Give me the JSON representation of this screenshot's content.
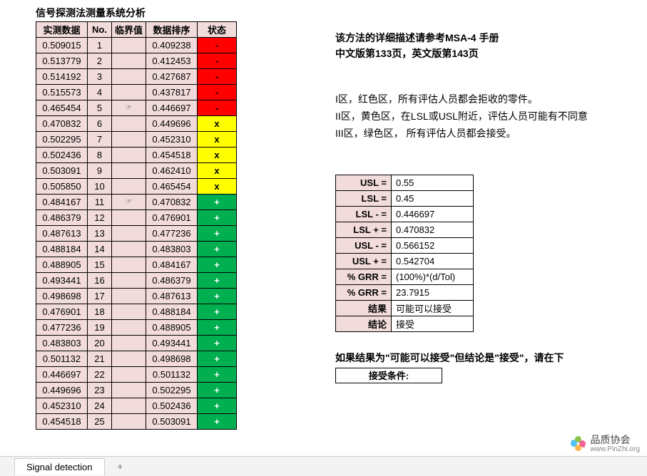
{
  "title": "信号探测法测量系统分析",
  "headers": {
    "data": "实测数据",
    "no": "No.",
    "thresh": "临界值",
    "sorted": "数据排序",
    "status": "状态"
  },
  "rows": [
    {
      "data": "0.509015",
      "no": "1",
      "thresh": "",
      "sorted": "0.409238",
      "status": "-",
      "sclass": "red"
    },
    {
      "data": "0.513779",
      "no": "2",
      "thresh": "",
      "sorted": "0.412453",
      "status": "-",
      "sclass": "red"
    },
    {
      "data": "0.514192",
      "no": "3",
      "thresh": "",
      "sorted": "0.427687",
      "status": "-",
      "sclass": "red"
    },
    {
      "data": "0.515573",
      "no": "4",
      "thresh": "",
      "sorted": "0.437817",
      "status": "-",
      "sclass": "red"
    },
    {
      "data": "0.465454",
      "no": "5",
      "thresh": "☞",
      "sorted": "0.446697",
      "status": "-",
      "sclass": "red"
    },
    {
      "data": "0.470832",
      "no": "6",
      "thresh": "",
      "sorted": "0.449696",
      "status": "x",
      "sclass": "yellow"
    },
    {
      "data": "0.502295",
      "no": "7",
      "thresh": "",
      "sorted": "0.452310",
      "status": "x",
      "sclass": "yellow"
    },
    {
      "data": "0.502436",
      "no": "8",
      "thresh": "",
      "sorted": "0.454518",
      "status": "x",
      "sclass": "yellow"
    },
    {
      "data": "0.503091",
      "no": "9",
      "thresh": "",
      "sorted": "0.462410",
      "status": "x",
      "sclass": "yellow"
    },
    {
      "data": "0.505850",
      "no": "10",
      "thresh": "",
      "sorted": "0.465454",
      "status": "x",
      "sclass": "yellow"
    },
    {
      "data": "0.484167",
      "no": "11",
      "thresh": "☞",
      "sorted": "0.470832",
      "status": "+",
      "sclass": "green"
    },
    {
      "data": "0.486379",
      "no": "12",
      "thresh": "",
      "sorted": "0.476901",
      "status": "+",
      "sclass": "green"
    },
    {
      "data": "0.487613",
      "no": "13",
      "thresh": "",
      "sorted": "0.477236",
      "status": "+",
      "sclass": "green"
    },
    {
      "data": "0.488184",
      "no": "14",
      "thresh": "",
      "sorted": "0.483803",
      "status": "+",
      "sclass": "green"
    },
    {
      "data": "0.488905",
      "no": "15",
      "thresh": "",
      "sorted": "0.484167",
      "status": "+",
      "sclass": "green"
    },
    {
      "data": "0.493441",
      "no": "16",
      "thresh": "",
      "sorted": "0.486379",
      "status": "+",
      "sclass": "green"
    },
    {
      "data": "0.498698",
      "no": "17",
      "thresh": "",
      "sorted": "0.487613",
      "status": "+",
      "sclass": "green"
    },
    {
      "data": "0.476901",
      "no": "18",
      "thresh": "",
      "sorted": "0.488184",
      "status": "+",
      "sclass": "green"
    },
    {
      "data": "0.477236",
      "no": "19",
      "thresh": "",
      "sorted": "0.488905",
      "status": "+",
      "sclass": "green"
    },
    {
      "data": "0.483803",
      "no": "20",
      "thresh": "",
      "sorted": "0.493441",
      "status": "+",
      "sclass": "green"
    },
    {
      "data": "0.501132",
      "no": "21",
      "thresh": "",
      "sorted": "0.498698",
      "status": "+",
      "sclass": "green"
    },
    {
      "data": "0.446697",
      "no": "22",
      "thresh": "",
      "sorted": "0.501132",
      "status": "+",
      "sclass": "green"
    },
    {
      "data": "0.449696",
      "no": "23",
      "thresh": "",
      "sorted": "0.502295",
      "status": "+",
      "sclass": "green"
    },
    {
      "data": "0.452310",
      "no": "24",
      "thresh": "",
      "sorted": "0.502436",
      "status": "+",
      "sclass": "green"
    },
    {
      "data": "0.454518",
      "no": "25",
      "thresh": "",
      "sorted": "0.503091",
      "status": "+",
      "sclass": "green"
    }
  ],
  "desc": {
    "line1": "该方法的详细描述请参考MSA-4 手册",
    "line2": "中文版第133页，英文版第143页"
  },
  "zones": {
    "z1": "I区，红色区，所有评估人员都会拒收的零件。",
    "z2": "II区，黄色区，在LSL或USL附近，评估人员可能有不同意",
    "z3": "III区，绿色区， 所有评估人员都会接受。"
  },
  "params": [
    {
      "k": "USL =",
      "v": "0.55"
    },
    {
      "k": "LSL =",
      "v": "0.45"
    },
    {
      "k": "LSL - =",
      "v": "0.446697"
    },
    {
      "k": "LSL + =",
      "v": "0.470832"
    },
    {
      "k": "USL - =",
      "v": "0.566152"
    },
    {
      "k": "USL + =",
      "v": "0.542704"
    },
    {
      "k": "% GRR =",
      "v": "(100%)*(d/Tol)"
    },
    {
      "k": "% GRR =",
      "v": "23.7915"
    },
    {
      "k": "结果",
      "v": "可能可以接受"
    },
    {
      "k": "结论",
      "v": "接受"
    }
  ],
  "note": "如果结果为\"可能可以接受\"但结论是\"接受\"，请在下",
  "accept_label": "接受条件:",
  "tab_name": "Signal detection",
  "brand": {
    "cn": "品质协会",
    "en": "www.PinZhi.org"
  },
  "colors": {
    "red": "#ff0000",
    "yellow": "#ffff00",
    "green": "#00b050",
    "header_bg": "#f2dcdb"
  }
}
